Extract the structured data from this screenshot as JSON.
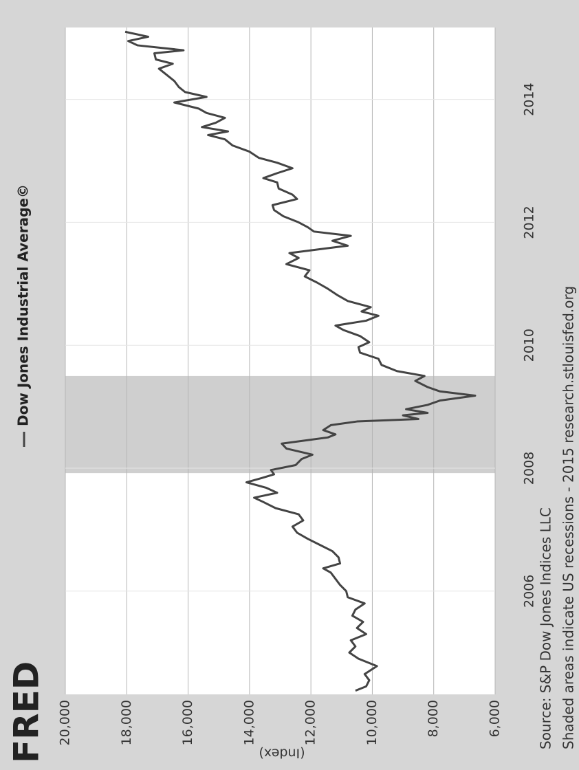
{
  "chart_data": {
    "type": "line",
    "logo": "FRED",
    "y_label": "(Index)",
    "source": "Source: S&P Dow Jones Indices LLC",
    "note": "Shaded areas indicate US recessions - 2015 research.stlouisfed.org",
    "x": [
      2004.38,
      2004.45,
      2004.55,
      2004.65,
      2004.78,
      2004.9,
      2005.0,
      2005.1,
      2005.2,
      2005.3,
      2005.4,
      2005.5,
      2005.6,
      2005.7,
      2005.8,
      2005.9,
      2006.0,
      2006.1,
      2006.2,
      2006.3,
      2006.37,
      2006.45,
      2006.55,
      2006.65,
      2006.75,
      2006.85,
      2006.95,
      2007.05,
      2007.15,
      2007.25,
      2007.35,
      2007.45,
      2007.52,
      2007.6,
      2007.68,
      2007.77,
      2007.84,
      2007.9,
      2007.97,
      2008.05,
      2008.15,
      2008.22,
      2008.32,
      2008.4,
      2008.5,
      2008.55,
      2008.62,
      2008.7,
      2008.76,
      2008.8,
      2008.86,
      2008.9,
      2008.96,
      2009.03,
      2009.1,
      2009.18,
      2009.25,
      2009.32,
      2009.42,
      2009.5,
      2009.58,
      2009.68,
      2009.78,
      2009.88,
      2009.97,
      2010.05,
      2010.15,
      2010.25,
      2010.32,
      2010.4,
      2010.48,
      2010.55,
      2010.62,
      2010.72,
      2010.82,
      2010.92,
      2011.02,
      2011.12,
      2011.22,
      2011.32,
      2011.42,
      2011.5,
      2011.58,
      2011.62,
      2011.7,
      2011.78,
      2011.85,
      2011.92,
      2012.0,
      2012.1,
      2012.2,
      2012.28,
      2012.38,
      2012.45,
      2012.55,
      2012.65,
      2012.72,
      2012.8,
      2012.88,
      2012.97,
      2013.05,
      2013.15,
      2013.25,
      2013.35,
      2013.42,
      2013.48,
      2013.55,
      2013.62,
      2013.7,
      2013.78,
      2013.85,
      2013.95,
      2014.04,
      2014.12,
      2014.2,
      2014.3,
      2014.4,
      2014.5,
      2014.58,
      2014.65,
      2014.75,
      2014.8,
      2014.88,
      2014.95,
      2015.02,
      2015.1
    ],
    "series": [
      {
        "name": "Dow Jones Industrial Average©",
        "color": "#444444",
        "values": [
          10550,
          10200,
          10100,
          10250,
          9850,
          10450,
          10750,
          10550,
          10700,
          10200,
          10500,
          10300,
          10650,
          10550,
          10250,
          10800,
          10850,
          11050,
          11200,
          11350,
          11600,
          11050,
          11100,
          11300,
          11700,
          12100,
          12450,
          12600,
          12250,
          12400,
          13150,
          13550,
          13850,
          13100,
          13450,
          14100,
          13600,
          13200,
          13300,
          12500,
          12300,
          11950,
          12800,
          12950,
          11450,
          11200,
          11600,
          11350,
          10500,
          8500,
          9000,
          8200,
          8900,
          8200,
          7800,
          6650,
          7800,
          8200,
          8600,
          8300,
          9200,
          9700,
          9800,
          10400,
          10450,
          10100,
          10400,
          10950,
          11200,
          10200,
          9800,
          10350,
          10050,
          10800,
          11150,
          11450,
          11800,
          12200,
          12050,
          12800,
          12400,
          12700,
          11450,
          10800,
          11300,
          10700,
          11900,
          12100,
          12400,
          12900,
          13200,
          13250,
          12450,
          12600,
          13050,
          13100,
          13550,
          13100,
          12600,
          13100,
          13700,
          14000,
          14550,
          14800,
          15350,
          14700,
          15550,
          15100,
          14800,
          15400,
          15650,
          16450,
          15400,
          16100,
          16300,
          16450,
          16700,
          16950,
          16500,
          17050,
          17100,
          16150,
          17650,
          17950,
          17300,
          18050
        ]
      }
    ],
    "recessions": [
      {
        "start": 2007.92,
        "end": 2009.5
      }
    ],
    "xlim": [
      2004.32,
      2015.17
    ],
    "xticks": [
      2006,
      2008,
      2010,
      2012,
      2014
    ],
    "ylim": [
      6000,
      20000
    ],
    "yticks": [
      {
        "value": 6000,
        "label": "6,000"
      },
      {
        "value": 8000,
        "label": "8,000"
      },
      {
        "value": 10000,
        "label": "10,000"
      },
      {
        "value": 12000,
        "label": "12,000"
      },
      {
        "value": 14000,
        "label": "14,000"
      },
      {
        "value": 16000,
        "label": "16,000"
      },
      {
        "value": 18000,
        "label": "18,000"
      },
      {
        "value": 20000,
        "label": "20,000"
      }
    ],
    "grid": true
  }
}
